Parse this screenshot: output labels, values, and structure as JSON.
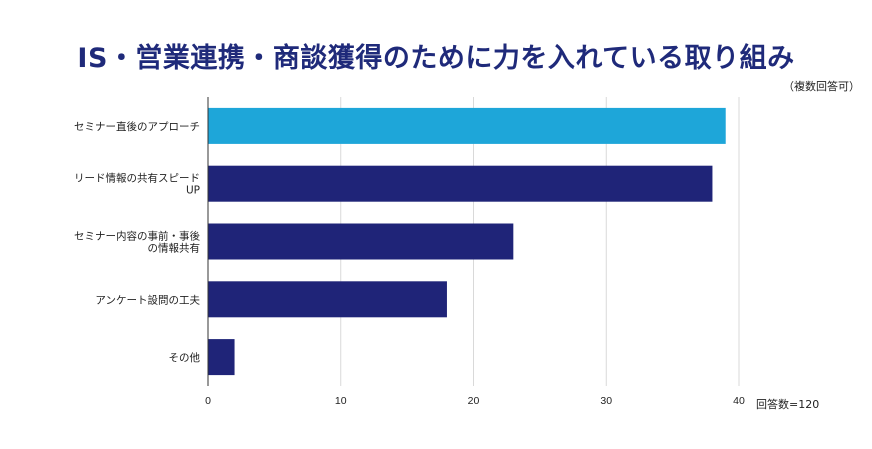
{
  "chart_data": {
    "type": "bar",
    "orientation": "horizontal",
    "title": "IS・営業連携・商談獲得のために力を入れている取り組み",
    "subtitle": "（複数回答可）",
    "note": "回答数=120",
    "categories": [
      [
        "セミナー直後のアプローチ"
      ],
      [
        "リード情報の共有スピード",
        "UP"
      ],
      [
        "セミナー内容の事前・事後",
        "の情報共有"
      ],
      [
        "アンケート設問の工夫"
      ],
      [
        "その他"
      ]
    ],
    "values": [
      39,
      38,
      23,
      18,
      2
    ],
    "colors": [
      "#1ea6d9",
      "#1f2478",
      "#1f2478",
      "#1f2478",
      "#1f2478"
    ],
    "xlim": [
      0,
      40
    ],
    "xticks": [
      0,
      10,
      20,
      30,
      40
    ],
    "grid": true
  }
}
